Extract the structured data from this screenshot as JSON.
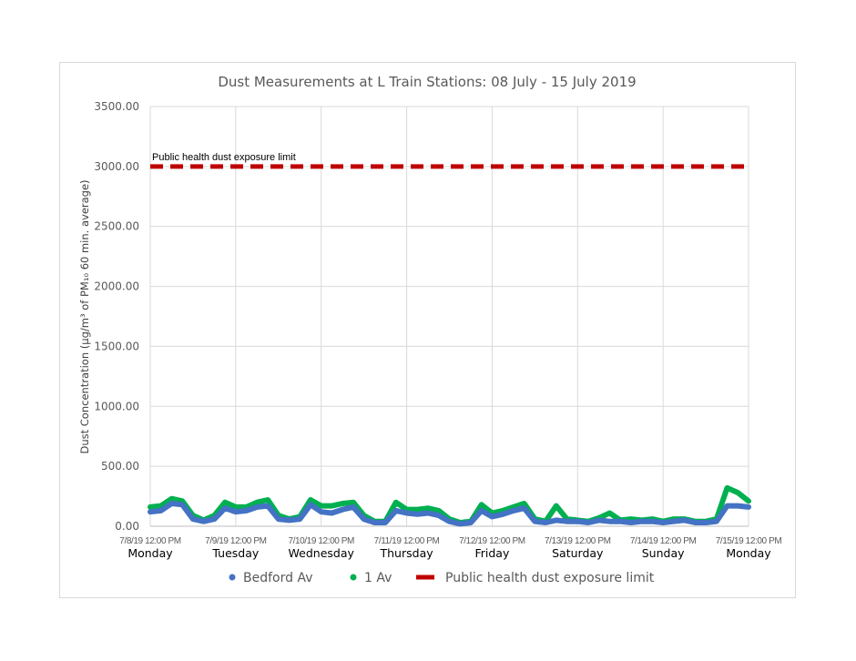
{
  "chart_data": {
    "type": "line",
    "title": "Dust Measurements at L Train Stations: 08 July - 15 July 2019",
    "ylabel": "Dust Concentration (µg/m³ of PM₁₀ 60 min. average)",
    "ylim": [
      0,
      3500
    ],
    "yticks": [
      "0.00",
      "500.00",
      "1000.00",
      "1500.00",
      "2000.00",
      "2500.00",
      "3000.00",
      "3500.00"
    ],
    "xlim": [
      "7/8/19 12:00 PM",
      "7/15/19 12:00 PM"
    ],
    "xticks": [
      {
        "label": "7/8/19 12:00 PM",
        "day": "Monday"
      },
      {
        "label": "7/9/19 12:00 PM",
        "day": "Tuesday"
      },
      {
        "label": "7/10/19 12:00 PM",
        "day": "Wednesday"
      },
      {
        "label": "7/11/19 12:00 PM",
        "day": "Thursday"
      },
      {
        "label": "7/12/19 12:00 PM",
        "day": "Friday"
      },
      {
        "label": "7/13/19 12:00 PM",
        "day": "Saturday"
      },
      {
        "label": "7/14/19 12:00 PM",
        "day": "Sunday"
      },
      {
        "label": "7/15/19 12:00 PM",
        "day": "Monday"
      }
    ],
    "x_step_hours": 3,
    "grid": true,
    "legend": "bottom",
    "series": [
      {
        "name": "1 Av",
        "color": "#00B050",
        "values": [
          160,
          170,
          230,
          210,
          90,
          50,
          90,
          200,
          160,
          160,
          200,
          220,
          90,
          60,
          80,
          220,
          170,
          170,
          190,
          200,
          90,
          40,
          40,
          200,
          140,
          140,
          150,
          130,
          60,
          30,
          40,
          180,
          110,
          130,
          160,
          190,
          60,
          40,
          170,
          60,
          50,
          40,
          70,
          110,
          50,
          60,
          50,
          60,
          40,
          60,
          60,
          40,
          40,
          60,
          320,
          280,
          210
        ]
      },
      {
        "name": "Bedford Av",
        "color": "#4472C4",
        "values": [
          120,
          130,
          190,
          180,
          60,
          40,
          60,
          150,
          120,
          130,
          160,
          170,
          60,
          50,
          60,
          180,
          120,
          110,
          140,
          160,
          60,
          30,
          30,
          130,
          110,
          100,
          110,
          90,
          40,
          20,
          30,
          130,
          80,
          100,
          130,
          150,
          40,
          30,
          50,
          40,
          40,
          30,
          50,
          40,
          40,
          30,
          40,
          40,
          30,
          40,
          50,
          30,
          30,
          40,
          170,
          170,
          160
        ]
      },
      {
        "name": "Public health dust exposure limit",
        "color": "#C00000",
        "constant": 3000,
        "label": "Public health dust exposure limit"
      }
    ]
  }
}
